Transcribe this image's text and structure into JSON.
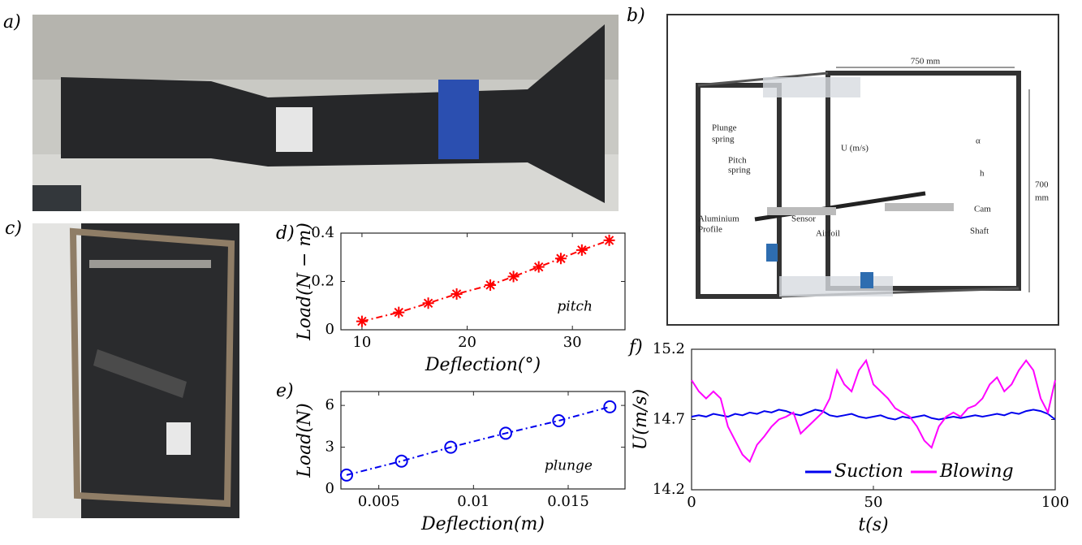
{
  "panels": [
    "a)",
    "b)",
    "c)",
    "d)",
    "e)",
    "f)"
  ],
  "diagram": {
    "width_label": "750 mm",
    "height_label_1": "700",
    "height_label_2": "mm",
    "labels": [
      "Plunge",
      "spring",
      "Pitch",
      "spring",
      "U (m/s)",
      "Aluminium",
      "Profile",
      "Sensor",
      "Airfoil",
      "Cam",
      "Shaft",
      "α",
      "h"
    ]
  },
  "chart_data": [
    {
      "type": "line",
      "annotation": "pitch",
      "x_label": "Deflection(°)",
      "y_label": "Load(N − m)",
      "x": [
        10,
        13.5,
        16.3,
        19,
        22.2,
        24.4,
        26.8,
        28.9,
        30.9,
        33.5
      ],
      "series": [
        {
          "color": "#ff0000",
          "marker": "asterisk",
          "values": [
            0.035,
            0.072,
            0.11,
            0.148,
            0.185,
            0.22,
            0.26,
            0.295,
            0.33,
            0.37
          ]
        }
      ],
      "xlim": [
        8,
        35
      ],
      "xticks": [
        10,
        20,
        30
      ],
      "ylim": [
        0,
        0.4
      ],
      "yticks": [
        0,
        0.2,
        0.4
      ]
    },
    {
      "type": "line",
      "annotation": "plunge",
      "x_label": "Deflection(m)",
      "y_label": "Load(N)",
      "x": [
        0.0033,
        0.0062,
        0.0088,
        0.0117,
        0.0145,
        0.0172
      ],
      "series": [
        {
          "color": "#0000ee",
          "marker": "circle",
          "values": [
            1,
            2,
            3,
            4,
            4.9,
            5.9
          ]
        }
      ],
      "xlim": [
        0.003,
        0.018
      ],
      "xticks": [
        0.005,
        0.01,
        0.015
      ],
      "ylim": [
        0,
        7
      ],
      "yticks": [
        0,
        3,
        6
      ]
    },
    {
      "type": "line",
      "x_label": "t(s)",
      "y_label": "U(m/s)",
      "x": [
        0,
        2,
        4,
        6,
        8,
        10,
        12,
        14,
        16,
        18,
        20,
        22,
        24,
        26,
        28,
        30,
        32,
        34,
        36,
        38,
        40,
        42,
        44,
        46,
        48,
        50,
        52,
        54,
        56,
        58,
        60,
        62,
        64,
        66,
        68,
        70,
        72,
        74,
        76,
        78,
        80,
        82,
        84,
        86,
        88,
        90,
        92,
        94,
        96,
        98,
        100
      ],
      "series": [
        {
          "name": "Suction",
          "color": "#0000ee",
          "values": [
            14.72,
            14.73,
            14.72,
            14.74,
            14.73,
            14.72,
            14.74,
            14.73,
            14.75,
            14.74,
            14.76,
            14.75,
            14.77,
            14.76,
            14.74,
            14.73,
            14.75,
            14.77,
            14.76,
            14.73,
            14.72,
            14.73,
            14.74,
            14.72,
            14.71,
            14.72,
            14.73,
            14.71,
            14.7,
            14.72,
            14.71,
            14.72,
            14.73,
            14.71,
            14.7,
            14.71,
            14.72,
            14.71,
            14.72,
            14.73,
            14.72,
            14.73,
            14.74,
            14.73,
            14.75,
            14.74,
            14.76,
            14.77,
            14.76,
            14.74,
            14.7
          ]
        },
        {
          "name": "Blowing",
          "color": "#ff00ff",
          "values": [
            14.98,
            14.9,
            14.85,
            14.9,
            14.85,
            14.65,
            14.55,
            14.45,
            14.4,
            14.52,
            14.58,
            14.65,
            14.7,
            14.72,
            14.75,
            14.6,
            14.65,
            14.7,
            14.75,
            14.85,
            15.05,
            14.95,
            14.9,
            15.05,
            15.12,
            14.95,
            14.9,
            14.85,
            14.78,
            14.75,
            14.72,
            14.65,
            14.55,
            14.5,
            14.65,
            14.72,
            14.75,
            14.72,
            14.78,
            14.8,
            14.85,
            14.95,
            15.0,
            14.9,
            14.95,
            15.05,
            15.12,
            15.05,
            14.85,
            14.75,
            14.98
          ]
        }
      ],
      "xlim": [
        0,
        100
      ],
      "xticks": [
        0,
        50,
        100
      ],
      "ylim": [
        14.2,
        15.2
      ],
      "yticks": [
        14.2,
        14.7,
        15.2
      ],
      "legend": "bottom"
    }
  ]
}
